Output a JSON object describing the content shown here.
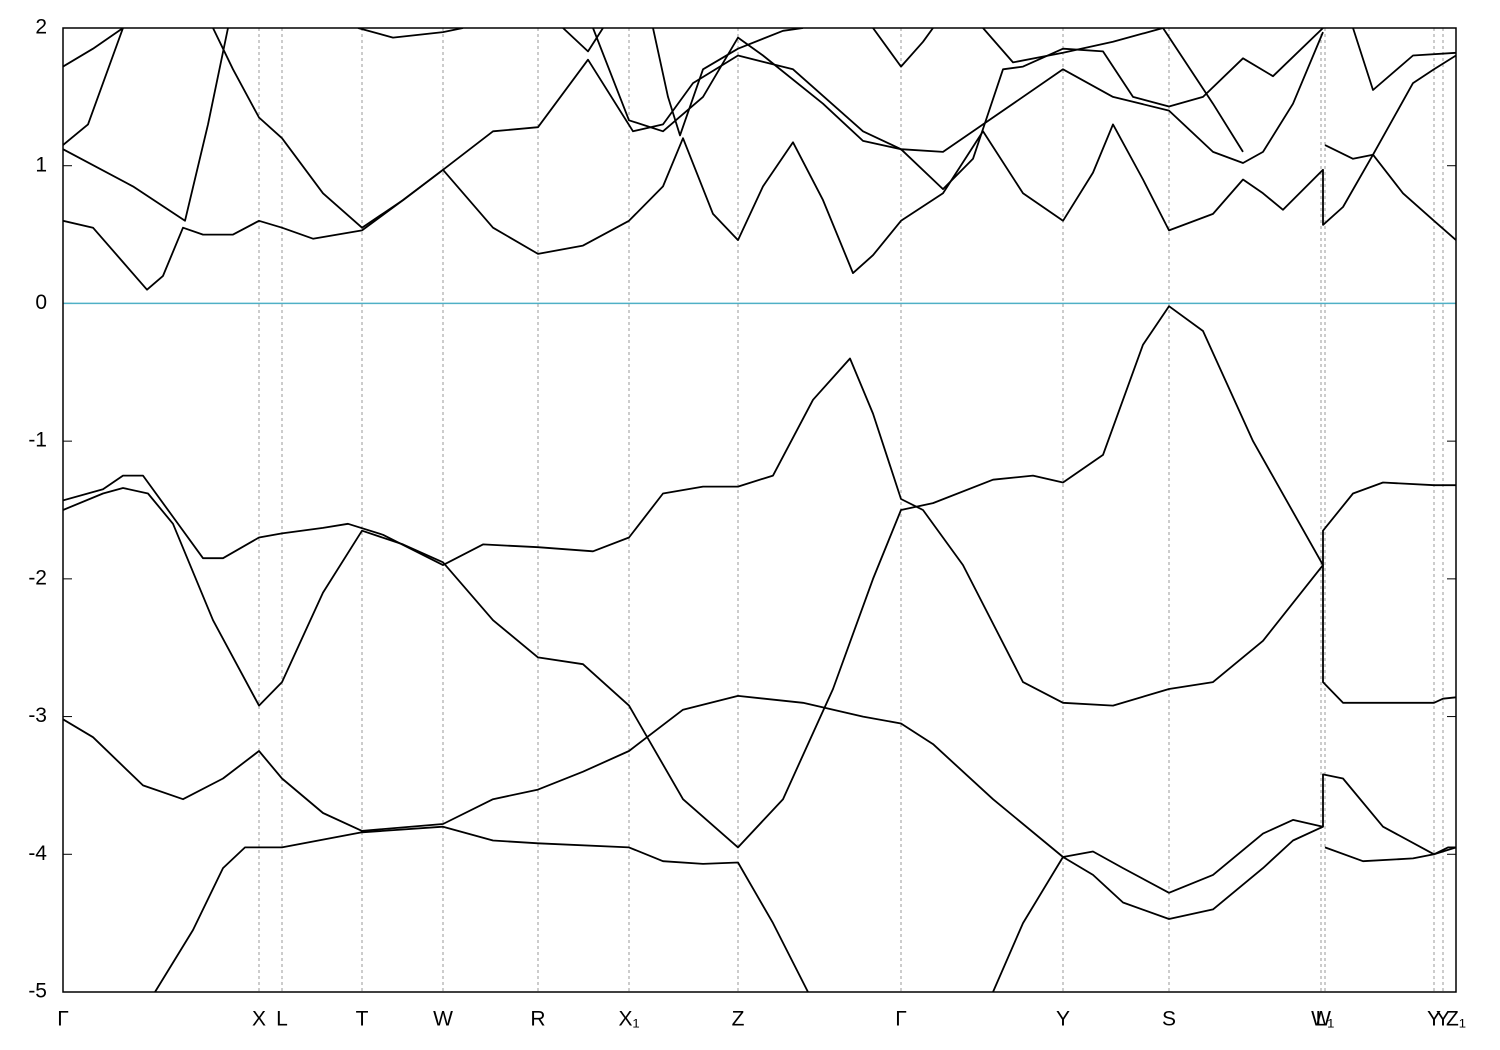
{
  "chart_data": {
    "type": "line",
    "xlim": [
      0,
      13.93
    ],
    "ylim": [
      -5,
      2
    ],
    "yticks": [
      -5,
      -4,
      -3,
      -2,
      -1,
      0,
      1,
      2
    ],
    "xticks": [
      {
        "value": 0,
        "label": "Γ"
      },
      {
        "value": 1.96,
        "label": "X"
      },
      {
        "value": 2.19,
        "label": "L"
      },
      {
        "value": 2.99,
        "label": "T"
      },
      {
        "value": 3.8,
        "label": "W"
      },
      {
        "value": 4.75,
        "label": "R"
      },
      {
        "value": 5.66,
        "label": "X₁"
      },
      {
        "value": 6.75,
        "label": "Z"
      },
      {
        "value": 8.38,
        "label": "Γ"
      },
      {
        "value": 10,
        "label": "Y"
      },
      {
        "value": 11.06,
        "label": "S"
      },
      {
        "value": 12.58,
        "label": "W"
      },
      {
        "value": 12.62,
        "label": "L₁"
      },
      {
        "value": 13.71,
        "label": "Y"
      },
      {
        "value": 13.8,
        "label": "Y"
      },
      {
        "value": 13.93,
        "label": "Z₁"
      }
    ],
    "grid": "x",
    "fermi_level": 0,
    "fermi_color": "#4fb0c6",
    "series": [
      {
        "color": "#000000",
        "x": [
          0.92,
          1.3,
          1.6,
          1.82,
          1.96,
          2.19,
          2.99,
          3.8,
          4.3,
          4.75,
          5.66,
          6.0,
          6.4,
          6.75,
          7.1,
          7.45,
          null,
          9.3,
          9.6,
          10.0,
          10.3,
          10.6,
          11.06,
          11.5,
          12.0,
          12.3,
          12.6,
          null,
          12.62,
          13.0,
          13.5,
          13.71,
          13.93
        ],
        "values": [
          -5,
          -4.55,
          -4.1,
          -3.95,
          -3.95,
          -3.95,
          -3.84,
          -3.8,
          -3.9,
          -3.92,
          -3.95,
          -4.05,
          -4.07,
          -4.06,
          -4.5,
          -5,
          null,
          -5,
          -4.5,
          -4.02,
          -4.15,
          -4.35,
          -4.47,
          -4.4,
          -4.1,
          -3.9,
          -3.8,
          null,
          -3.95,
          -4.05,
          -4.03,
          -4.0,
          -3.95
        ]
      },
      {
        "color": "#000000",
        "x": [
          0,
          0.3,
          0.8,
          1.2,
          1.6,
          1.96,
          2.19,
          2.6,
          2.99,
          3.8,
          4.3,
          4.75,
          5.2,
          5.66,
          6.2,
          6.75,
          7.4,
          8.0,
          8.38,
          8.7,
          9.3,
          10.0,
          10.3,
          10.6,
          11.06,
          11.5,
          12.0,
          12.3,
          12.6,
          12.6,
          12.8,
          13.2,
          13.71,
          13.85,
          13.93
        ],
        "values": [
          -3.02,
          -3.15,
          -3.5,
          -3.6,
          -3.45,
          -3.25,
          -3.45,
          -3.7,
          -3.83,
          -3.78,
          -3.6,
          -3.53,
          -3.4,
          -3.25,
          -2.95,
          -2.85,
          -2.9,
          -3.0,
          -3.05,
          -3.2,
          -3.6,
          -4.02,
          -3.98,
          -4.1,
          -4.28,
          -4.15,
          -3.85,
          -3.75,
          -3.8,
          -3.42,
          -3.45,
          -3.8,
          -4.0,
          -3.95,
          -3.95
        ]
      },
      {
        "color": "#000000",
        "x": [
          0,
          0.4,
          0.6,
          0.85,
          1.1,
          1.5,
          1.96,
          2.19,
          2.6,
          2.99,
          3.4,
          3.8,
          4.3,
          4.75,
          5.2,
          5.66,
          6.2,
          6.75,
          7.2,
          7.7,
          8.1,
          8.38,
          8.7,
          9.3,
          9.7,
          10.0,
          10.4,
          10.8,
          11.06,
          11.4,
          11.9,
          12.6,
          12.6,
          12.8,
          13.71,
          13.8,
          13.93
        ],
        "values": [
          -1.5,
          -1.38,
          -1.34,
          -1.38,
          -1.6,
          -2.3,
          -2.92,
          -2.75,
          -2.1,
          -1.65,
          -1.75,
          -1.88,
          -2.3,
          -2.57,
          -2.62,
          -2.92,
          -3.6,
          -3.95,
          -3.6,
          -2.8,
          -2.0,
          -1.5,
          -1.45,
          -1.28,
          -1.25,
          -1.3,
          -1.1,
          -0.3,
          -0.02,
          -0.2,
          -1.0,
          -1.9,
          -2.75,
          -2.9,
          -2.9,
          -2.87,
          -2.86
        ]
      },
      {
        "color": "#000000",
        "x": [
          0,
          0.4,
          0.6,
          0.8,
          1.1,
          1.4,
          1.6,
          1.96,
          2.19,
          2.6,
          2.85,
          3.2,
          3.8,
          4.2,
          4.75,
          5.3,
          5.66,
          6.0,
          6.4,
          6.75,
          7.1,
          7.5,
          7.87,
          8.1,
          8.38,
          8.6,
          9.0,
          9.6,
          10.0,
          10.5,
          11.06,
          11.5,
          12.0,
          12.6,
          12.6,
          12.9,
          13.2,
          13.71,
          13.93
        ],
        "values": [
          -1.43,
          -1.35,
          -1.25,
          -1.25,
          -1.55,
          -1.85,
          -1.85,
          -1.7,
          -1.67,
          -1.63,
          -1.6,
          -1.68,
          -1.9,
          -1.75,
          -1.77,
          -1.8,
          -1.7,
          -1.38,
          -1.33,
          -1.33,
          -1.25,
          -0.7,
          -0.4,
          -0.8,
          -1.42,
          -1.5,
          -1.9,
          -2.75,
          -2.9,
          -2.92,
          -2.8,
          -2.75,
          -2.45,
          -1.9,
          -1.65,
          -1.38,
          -1.3,
          -1.32,
          -1.32
        ]
      },
      {
        "color": "#000000",
        "x": [
          0,
          0.3,
          0.6,
          0.84,
          1.0,
          1.2,
          1.4,
          1.7,
          1.96,
          2.19,
          2.5,
          2.99,
          3.4,
          3.8,
          4.3,
          4.75,
          5.2,
          5.66,
          6.0,
          6.2,
          6.5,
          6.75,
          7.0,
          7.3,
          7.6,
          7.9,
          8.1,
          8.38,
          8.8,
          9.2,
          9.6,
          10.0,
          10.3,
          10.5,
          10.8,
          11.06,
          11.5,
          11.8,
          12.0,
          12.2,
          12.6,
          12.6,
          12.8,
          13.1,
          13.4,
          13.71,
          13.93
        ],
        "values": [
          0.6,
          0.55,
          0.3,
          0.1,
          0.2,
          0.55,
          0.5,
          0.5,
          0.6,
          0.55,
          0.47,
          0.53,
          0.75,
          0.97,
          0.55,
          0.36,
          0.42,
          0.6,
          0.85,
          1.2,
          0.65,
          0.46,
          0.85,
          1.17,
          0.75,
          0.22,
          0.35,
          0.6,
          0.8,
          1.25,
          0.8,
          0.6,
          0.95,
          1.3,
          0.9,
          0.53,
          0.65,
          0.9,
          0.8,
          0.68,
          0.97,
          0.57,
          0.7,
          1.08,
          0.8,
          0.6,
          0.46
        ]
      },
      {
        "color": "#000000",
        "x": [
          0,
          0.7,
          1.22,
          1.45,
          1.65
        ],
        "values": [
          1.12,
          0.85,
          0.6,
          1.3,
          2.0
        ]
      },
      {
        "color": "#000000",
        "x": [
          0,
          0.25,
          0.6
        ],
        "values": [
          1.15,
          1.3,
          2.0
        ]
      },
      {
        "color": "#000000",
        "x": [
          0,
          0.3,
          0.6
        ],
        "values": [
          1.72,
          1.85,
          2.0
        ]
      },
      {
        "color": "#000000",
        "x": [
          1.5,
          1.7,
          1.96,
          2.19,
          2.6,
          2.99,
          3.4,
          3.8,
          4.3,
          4.75,
          5.25,
          5.7,
          6.0,
          6.3,
          6.75,
          7.3,
          8.0,
          8.38,
          8.8,
          9.2,
          10.0,
          10.5,
          11.06,
          11.5,
          11.8,
          12.0,
          12.3,
          12.6
        ],
        "values": [
          2.0,
          1.7,
          1.35,
          1.2,
          0.8,
          0.55,
          0.75,
          0.97,
          1.25,
          1.28,
          1.77,
          1.25,
          1.3,
          1.6,
          1.8,
          1.7,
          1.25,
          1.12,
          1.1,
          1.3,
          1.7,
          1.5,
          1.4,
          1.1,
          1.02,
          1.1,
          1.45,
          1.97
        ]
      },
      {
        "color": "#000000",
        "x": [
          2.95,
          3.3,
          3.8,
          4.0
        ],
        "values": [
          2.0,
          1.93,
          1.97,
          2.0
        ]
      },
      {
        "color": "#000000",
        "x": [
          5.0,
          5.25,
          5.4
        ],
        "values": [
          2.0,
          1.83,
          2.0
        ]
      },
      {
        "color": "#000000",
        "x": [
          5.9,
          6.05,
          6.17,
          6.4,
          6.75,
          7.2,
          7.4
        ],
        "values": [
          2.0,
          1.5,
          1.22,
          1.7,
          1.85,
          1.98,
          2.0
        ]
      },
      {
        "color": "#000000",
        "x": [
          5.3,
          5.66,
          6.0,
          6.4,
          6.75,
          7.0,
          7.6,
          8.0,
          8.38,
          8.8,
          9.1,
          9.4,
          9.6,
          10.0,
          10.4,
          10.7,
          11.06,
          11.4,
          11.8,
          12.1,
          12.6
        ],
        "values": [
          2.0,
          1.33,
          1.25,
          1.5,
          1.93,
          1.8,
          1.45,
          1.18,
          1.12,
          0.83,
          1.05,
          1.7,
          1.72,
          1.85,
          1.83,
          1.5,
          1.43,
          1.5,
          1.78,
          1.65,
          2.0
        ]
      },
      {
        "color": "#000000",
        "x": [
          8.1,
          8.38,
          8.6,
          8.7
        ],
        "values": [
          2.0,
          1.72,
          1.9,
          2.0
        ]
      },
      {
        "color": "#000000",
        "x": [
          9.2,
          9.5,
          10.0,
          10.5,
          11.0,
          11.5,
          11.8
        ],
        "values": [
          2.0,
          1.75,
          1.82,
          1.9,
          2.0,
          1.45,
          1.1
        ]
      },
      {
        "color": "#000000",
        "x": [
          12.62,
          12.9,
          13.1,
          13.5,
          13.71,
          13.93
        ],
        "values": [
          1.15,
          1.05,
          1.08,
          1.6,
          1.7,
          1.8
        ]
      },
      {
        "color": "#000000",
        "x": [
          12.9,
          13.1,
          13.5,
          13.93
        ],
        "values": [
          2.0,
          1.55,
          1.8,
          1.82
        ]
      }
    ]
  }
}
